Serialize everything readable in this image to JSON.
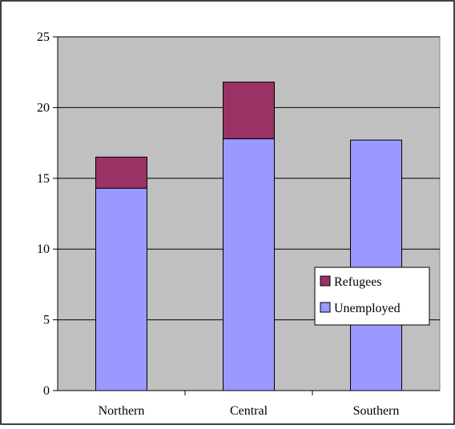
{
  "colors": {
    "plot_background": "#C0C0C0",
    "outer_background": "#FFFFFF",
    "refugees": "#993366",
    "unemployed": "#9999FF",
    "gridline": "#000000"
  },
  "chart_data": {
    "type": "bar",
    "stacked": true,
    "categories": [
      "Northern",
      "Central",
      "Southern"
    ],
    "series": [
      {
        "name": "Unemployed",
        "values": [
          14.3,
          17.8,
          17.7
        ]
      },
      {
        "name": "Refugees",
        "values": [
          2.2,
          4.0,
          0
        ]
      }
    ],
    "title": "",
    "xlabel": "",
    "ylabel": "",
    "ylim": [
      0,
      25
    ],
    "yticks": [
      0,
      5,
      10,
      15,
      20,
      25
    ],
    "ytick_labels": [
      "0",
      "5",
      "10",
      "15",
      "20",
      "25"
    ],
    "grid": true,
    "legend": {
      "placement": "right",
      "entries": [
        "Refugees",
        "Unemployed"
      ]
    }
  }
}
